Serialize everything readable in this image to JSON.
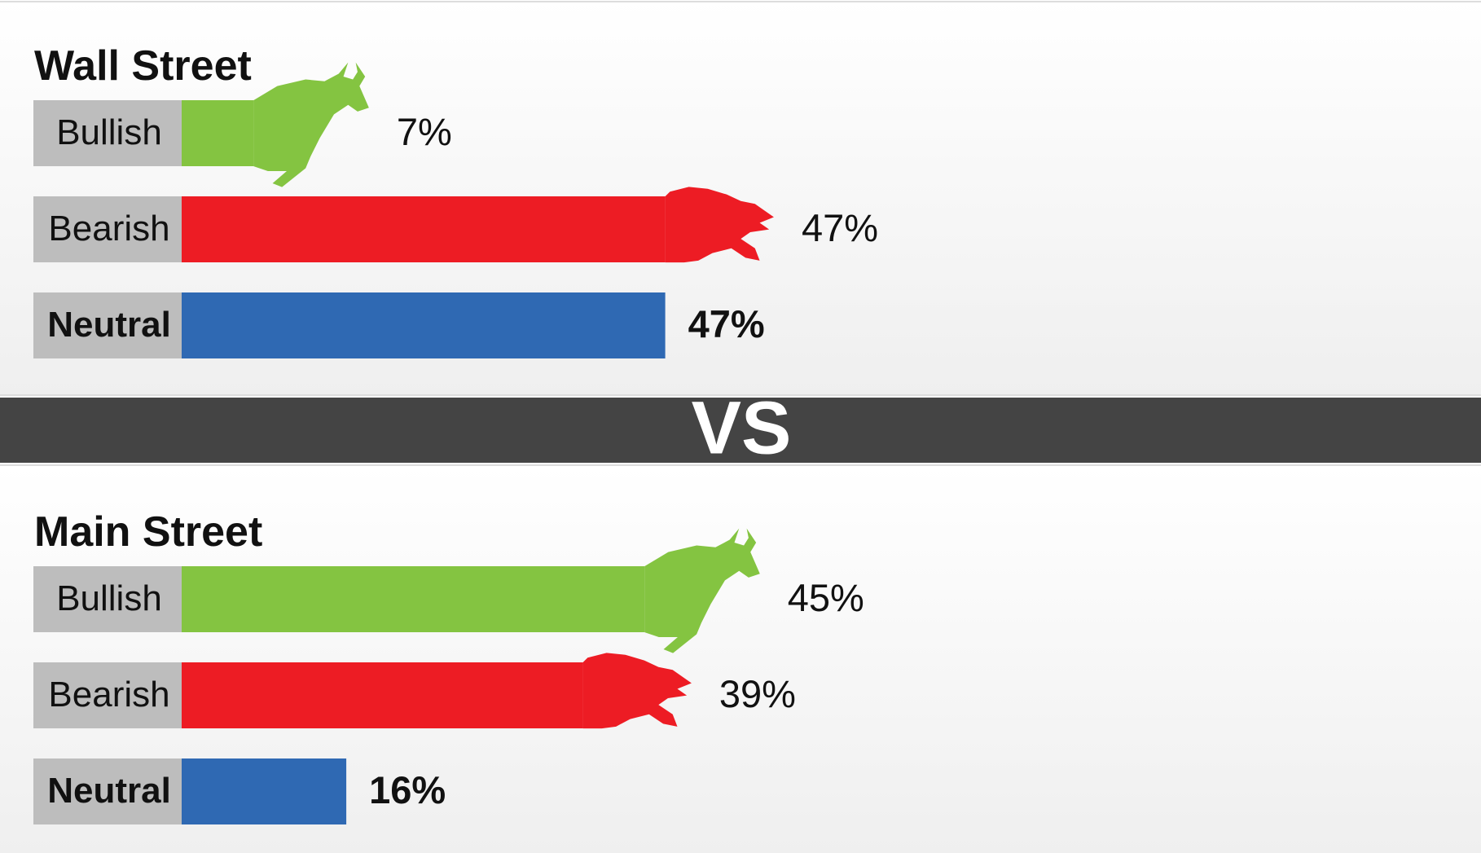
{
  "separator": "VS",
  "chart_data": [
    {
      "type": "bar",
      "title": "Wall Street",
      "categories": [
        "Bullish",
        "Bearish",
        "Neutral"
      ],
      "values": [
        7,
        47,
        47
      ],
      "value_labels": [
        "7%",
        "47%",
        "47%"
      ],
      "colors": [
        "#84c441",
        "#ed1c24",
        "#2f69b3"
      ]
    },
    {
      "type": "bar",
      "title": "Main Street",
      "categories": [
        "Bullish",
        "Bearish",
        "Neutral"
      ],
      "values": [
        45,
        39,
        16
      ],
      "value_labels": [
        "45%",
        "39%",
        "16%"
      ],
      "colors": [
        "#84c441",
        "#ed1c24",
        "#2f69b3"
      ]
    }
  ]
}
